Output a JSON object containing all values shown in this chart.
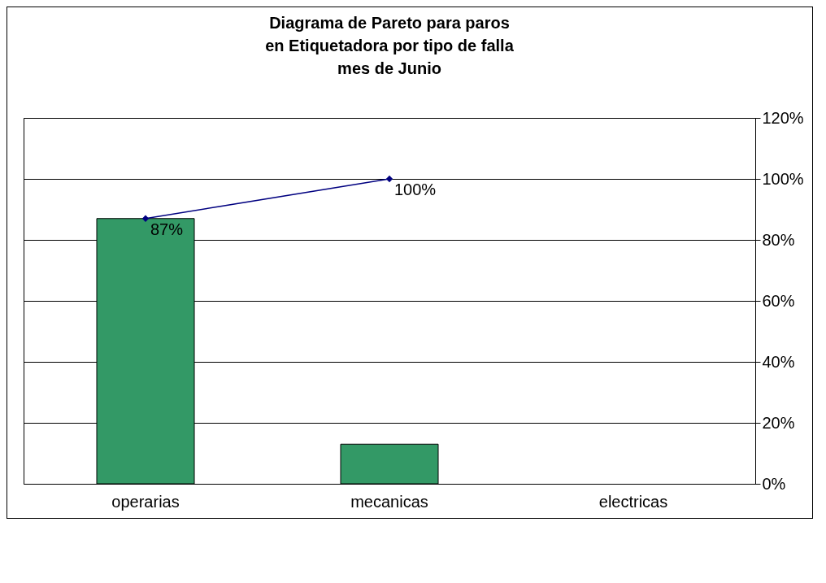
{
  "chart_data": {
    "type": "bar",
    "title": "Diagrama de Pareto para paros\nen Etiquetadora por tipo de falla\nmes de Junio",
    "categories": [
      "operarias",
      "mecanicas",
      "electricas"
    ],
    "series": [
      {
        "axis": "y2",
        "color": "#339966",
        "values": [
          87,
          13,
          null
        ]
      },
      {
        "type": "line",
        "axis": "y2",
        "color": "#000080",
        "marker": "diamond",
        "values": [
          87,
          100,
          null
        ],
        "value_labels": [
          "87%",
          "100%",
          null
        ]
      }
    ],
    "y2lim": [
      0,
      120
    ],
    "y2ticks": [
      {
        "value": 0,
        "label": "0%"
      },
      {
        "value": 20,
        "label": "20%"
      },
      {
        "value": 40,
        "label": "40%"
      },
      {
        "value": 60,
        "label": "60%"
      },
      {
        "value": 80,
        "label": "80%"
      },
      {
        "value": 100,
        "label": "100%"
      },
      {
        "value": 120,
        "label": "120%"
      }
    ],
    "grid": "y"
  }
}
